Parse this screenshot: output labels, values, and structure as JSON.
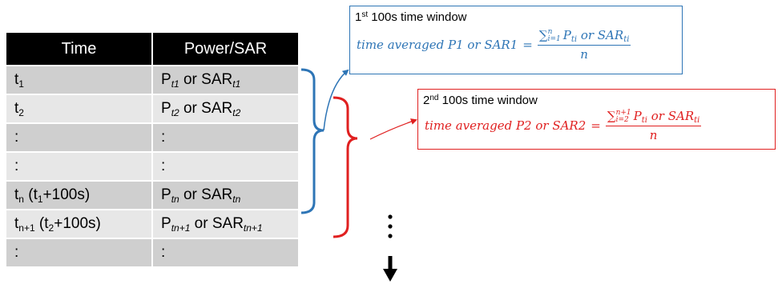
{
  "table": {
    "headers": [
      "Time",
      "Power/SAR"
    ],
    "rows": [
      {
        "time": {
          "main": "t",
          "sub": "1"
        },
        "power": {
          "p": "P",
          "psub": "t1",
          "mid": " or SAR",
          "ssub": "t1"
        }
      },
      {
        "time": {
          "main": "t",
          "sub": "2"
        },
        "power": {
          "p": "P",
          "psub": "t2",
          "mid": " or SAR",
          "ssub": "t2"
        }
      },
      {
        "time": {
          "main": ":",
          "sub": ""
        },
        "power": {
          "p": ":",
          "psub": "",
          "mid": "",
          "ssub": ""
        }
      },
      {
        "time": {
          "main": ":",
          "sub": ""
        },
        "power": {
          "p": ":",
          "psub": "",
          "mid": "",
          "ssub": ""
        }
      },
      {
        "time": {
          "main": "t",
          "sub": "n",
          "extra_pre": " (t",
          "extra_sub": "1",
          "extra_post": "+100s)"
        },
        "power": {
          "p": "P",
          "psub": "tn",
          "mid": " or SAR",
          "ssub": "tn"
        }
      },
      {
        "time": {
          "main": "t",
          "sub": "n+1",
          "extra_pre": " (t",
          "extra_sub": "2",
          "extra_post": "+100s)"
        },
        "power": {
          "p": "P",
          "psub": "tn+1",
          "mid": " or SAR",
          "ssub": "tn+1"
        }
      },
      {
        "time": {
          "main": ":",
          "sub": ""
        },
        "power": {
          "p": ":",
          "psub": "",
          "mid": "",
          "ssub": ""
        }
      }
    ]
  },
  "windows": [
    {
      "ordinal": "1",
      "ordinal_suffix": "st",
      "title": " 100s time window",
      "color": "#2e75b6",
      "lhs": "time averaged P1 or SAR1",
      "sum_lower": "i=1",
      "sum_upper": "n",
      "num_body_p": "P",
      "num_body_mid": " or SAR",
      "term_sub": "ti",
      "denominator": "n"
    },
    {
      "ordinal": "2",
      "ordinal_suffix": "nd",
      "title": " 100s time window",
      "color": "#e02020",
      "lhs": "time averaged P2 or SAR2",
      "sum_lower": "i=2",
      "sum_upper": "n+1",
      "num_body_p": "P",
      "num_body_mid": " or SAR",
      "term_sub": "ti",
      "denominator": "n"
    }
  ],
  "equals_sign": "=",
  "sigma_symbol": "∑",
  "continuation_dots": "⋮",
  "icons": {
    "down_arrow": "down-arrow-icon",
    "blue_brace": "brace-icon",
    "red_brace": "brace-icon"
  }
}
